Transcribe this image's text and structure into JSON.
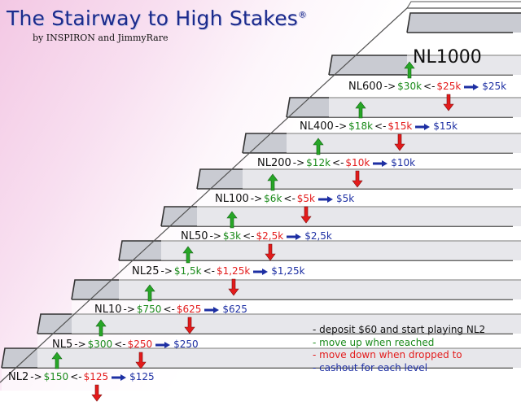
{
  "header": {
    "title": "The Stairway to High Stakes",
    "trademark": "®",
    "byline": "by INSPIRON and JimmyRare"
  },
  "top_level": "NL1000",
  "steps": [
    {
      "level": "NL2",
      "up": "$150",
      "down": "$125",
      "cashout": "$125"
    },
    {
      "level": "NL5",
      "up": "$300",
      "down": "$250",
      "cashout": "$250"
    },
    {
      "level": "NL10",
      "up": "$750",
      "down": "$625",
      "cashout": "$625"
    },
    {
      "level": "NL25",
      "up": "$1,5k",
      "down": "$1,25k",
      "cashout": "$1,25k"
    },
    {
      "level": "NL50",
      "up": "$3k",
      "down": "$2,5k",
      "cashout": "$2,5k"
    },
    {
      "level": "NL100",
      "up": "$6k",
      "down": "$5k",
      "cashout": "$5k"
    },
    {
      "level": "NL200",
      "up": "$12k",
      "down": "$10k",
      "cashout": "$10k"
    },
    {
      "level": "NL400",
      "up": "$18k",
      "down": "$15k",
      "cashout": "$15k"
    },
    {
      "level": "NL600",
      "up": "$30k",
      "down": "$25k",
      "cashout": "$25k"
    }
  ],
  "operators": {
    "right": "->",
    "left": "<-"
  },
  "legend": [
    {
      "text": "- deposit $60 and start playing NL2",
      "color": "black"
    },
    {
      "text": "- move up when reached",
      "color": "green"
    },
    {
      "text": "- move down when dropped to",
      "color": "red"
    },
    {
      "text": "- cashout for each level",
      "color": "blue"
    }
  ],
  "colors": {
    "up": "#1a8a1a",
    "down": "#e31b1b",
    "cashout": "#1d2fa3",
    "title": "#1b2a8c"
  }
}
